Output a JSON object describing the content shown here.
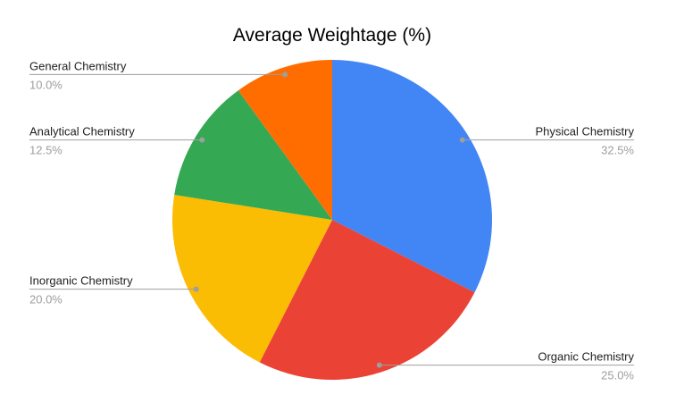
{
  "chart_data": {
    "type": "pie",
    "title": "Average Weightage (%)",
    "direction": "clockwise",
    "start_angle_deg": 0,
    "legend_position": "outside-labels-with-leader-lines",
    "background_color": "#ffffff",
    "title_color": "#000000",
    "label_text_color": "#202124",
    "percent_text_color": "#9e9e9e",
    "leader_line_color": "#9e9e9e",
    "slices": [
      {
        "label": "Physical Chemistry",
        "value": 32.5,
        "percent_label": "32.5%",
        "color": "#4285F4"
      },
      {
        "label": "Organic Chemistry",
        "value": 25.0,
        "percent_label": "25.0%",
        "color": "#EA4335"
      },
      {
        "label": "Inorganic Chemistry",
        "value": 20.0,
        "percent_label": "20.0%",
        "color": "#FBBC04"
      },
      {
        "label": "Analytical Chemistry",
        "value": 12.5,
        "percent_label": "12.5%",
        "color": "#34A853"
      },
      {
        "label": "General Chemistry",
        "value": 10.0,
        "percent_label": "10.0%",
        "color": "#FF6D01"
      }
    ]
  }
}
